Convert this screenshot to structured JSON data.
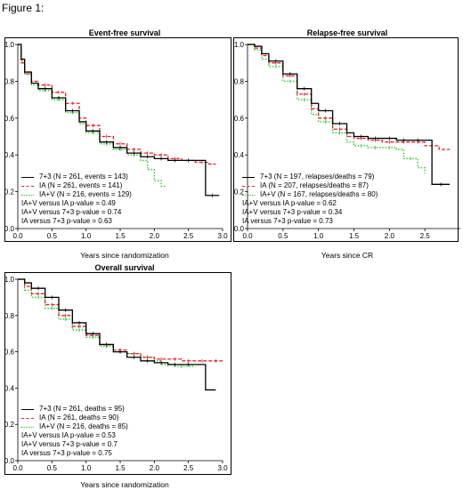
{
  "figure_title": "Figure 1:",
  "colors": {
    "series_7_3": "#000000",
    "series_IA": "#e8242b",
    "series_IAV": "#2cc82c"
  },
  "panels": [
    {
      "title": "Event-free survival",
      "xlabel": "Years since randomization",
      "legend": [
        "7+3 (N = 261, events = 143)",
        "IA (N = 261, events = 141)",
        "IA+V (N = 216, events = 129)"
      ],
      "stats": [
        "IA+V versus IA p-value = 0.49",
        "IA+V versus 7+3 p-value = 0.74",
        "IA versus 7+3 p-value = 0.63"
      ]
    },
    {
      "title": "Relapse-free survival",
      "xlabel": "Years since CR",
      "legend": [
        "7+3 (N = 197, relapses/deaths = 79)",
        "IA (N = 207, relapses/deaths = 87)",
        "IA+V (N = 167, relapses/deaths = 80)"
      ],
      "stats": [
        "IA+V versus IA p-value = 0.62",
        "IA+V versus 7+3 p-value = 0.34",
        "IA versus 7+3 p-value = 0.73"
      ]
    },
    {
      "title": "Overall survival",
      "xlabel": "Years since randomization",
      "legend": [
        "7+3 (N = 261, deaths = 95)",
        "IA (N = 261, deaths = 90)",
        "IA+V (N = 216, deaths = 85)"
      ],
      "stats": [
        "IA+V versus IA p-value = 0.53",
        "IA+V versus 7+3 p-value = 0.7",
        "IA versus 7+3 p-value = 0.75"
      ]
    }
  ],
  "chart_data": [
    {
      "type": "line",
      "title": "Event-free survival",
      "xlabel": "Years since randomization",
      "xlim": [
        0,
        3.0
      ],
      "ylim": [
        0.0,
        1.0
      ],
      "xticks": [
        "0.0",
        "0.5",
        "1.0",
        "1.5",
        "2.0",
        "2.5",
        "3.0"
      ],
      "yticks": [
        "0.0",
        "0.2",
        "0.4",
        "0.6",
        "0.8",
        "1.0"
      ],
      "series": [
        {
          "name": "7+3",
          "style": "solid",
          "x": [
            0,
            0.05,
            0.1,
            0.2,
            0.3,
            0.5,
            0.7,
            0.9,
            1.0,
            1.2,
            1.4,
            1.6,
            1.8,
            2.0,
            2.2,
            2.4,
            2.6,
            2.75,
            2.75,
            2.95
          ],
          "y": [
            1.0,
            0.92,
            0.85,
            0.79,
            0.76,
            0.71,
            0.64,
            0.58,
            0.53,
            0.47,
            0.44,
            0.41,
            0.39,
            0.38,
            0.37,
            0.37,
            0.37,
            0.37,
            0.18,
            0.18
          ]
        },
        {
          "name": "IA",
          "style": "dashed",
          "x": [
            0,
            0.05,
            0.1,
            0.2,
            0.3,
            0.5,
            0.7,
            0.9,
            1.0,
            1.2,
            1.4,
            1.6,
            1.8,
            2.0,
            2.2,
            2.4,
            2.6,
            2.8,
            2.9
          ],
          "y": [
            1.0,
            0.9,
            0.84,
            0.8,
            0.78,
            0.74,
            0.68,
            0.6,
            0.56,
            0.5,
            0.46,
            0.43,
            0.41,
            0.4,
            0.38,
            0.37,
            0.36,
            0.35,
            0.35
          ]
        },
        {
          "name": "IA+V",
          "style": "dotted",
          "x": [
            0,
            0.05,
            0.1,
            0.2,
            0.3,
            0.5,
            0.7,
            0.9,
            1.0,
            1.2,
            1.4,
            1.6,
            1.8,
            1.9,
            2.0,
            2.1,
            2.15
          ],
          "y": [
            1.0,
            0.91,
            0.84,
            0.78,
            0.75,
            0.7,
            0.63,
            0.57,
            0.52,
            0.46,
            0.43,
            0.4,
            0.37,
            0.32,
            0.26,
            0.23,
            0.22
          ]
        }
      ]
    },
    {
      "type": "line",
      "title": "Relapse-free survival",
      "xlabel": "Years since CR",
      "xlim": [
        0,
        3.0
      ],
      "ylim": [
        0.0,
        1.0
      ],
      "xticks": [
        "0.0",
        "0.5",
        "1.0",
        "1.5",
        "2.0",
        "2.5"
      ],
      "yticks": [
        "0.0",
        "0.2",
        "0.4",
        "0.6",
        "0.8",
        "1.0"
      ],
      "series": [
        {
          "name": "7+3",
          "style": "solid",
          "x": [
            0,
            0.1,
            0.2,
            0.3,
            0.5,
            0.7,
            0.9,
            1.0,
            1.2,
            1.4,
            1.5,
            1.7,
            1.9,
            2.1,
            2.3,
            2.5,
            2.6,
            2.6,
            2.85
          ],
          "y": [
            1.0,
            0.99,
            0.95,
            0.91,
            0.84,
            0.76,
            0.68,
            0.64,
            0.57,
            0.52,
            0.5,
            0.49,
            0.49,
            0.48,
            0.48,
            0.48,
            0.48,
            0.24,
            0.24
          ]
        },
        {
          "name": "IA",
          "style": "dashed",
          "x": [
            0,
            0.1,
            0.2,
            0.3,
            0.5,
            0.7,
            0.9,
            1.0,
            1.2,
            1.4,
            1.5,
            1.7,
            1.9,
            2.1,
            2.3,
            2.5,
            2.7,
            2.85
          ],
          "y": [
            1.0,
            0.98,
            0.94,
            0.9,
            0.83,
            0.73,
            0.65,
            0.6,
            0.54,
            0.5,
            0.49,
            0.48,
            0.47,
            0.47,
            0.47,
            0.45,
            0.43,
            0.43
          ]
        },
        {
          "name": "IA+V",
          "style": "dotted",
          "x": [
            0,
            0.1,
            0.2,
            0.3,
            0.5,
            0.7,
            0.9,
            1.0,
            1.2,
            1.4,
            1.5,
            1.7,
            1.9,
            2.1,
            2.2,
            2.4,
            2.5
          ],
          "y": [
            1.0,
            0.97,
            0.92,
            0.88,
            0.8,
            0.7,
            0.62,
            0.58,
            0.52,
            0.47,
            0.45,
            0.44,
            0.44,
            0.43,
            0.38,
            0.33,
            0.3
          ]
        }
      ]
    },
    {
      "type": "line",
      "title": "Overall survival",
      "xlabel": "Years since randomization",
      "xlim": [
        0,
        3.0
      ],
      "ylim": [
        0.0,
        1.0
      ],
      "xticks": [
        "0.0",
        "0.5",
        "1.0",
        "1.5",
        "2.0",
        "2.5",
        "3.0"
      ],
      "yticks": [
        "0.0",
        "0.2",
        "0.4",
        "0.6",
        "0.8",
        "1.0"
      ],
      "series": [
        {
          "name": "7+3",
          "style": "solid",
          "x": [
            0,
            0.1,
            0.2,
            0.4,
            0.6,
            0.8,
            1.0,
            1.2,
            1.4,
            1.6,
            1.8,
            2.0,
            2.2,
            2.4,
            2.6,
            2.75,
            2.75,
            2.9
          ],
          "y": [
            1.0,
            0.98,
            0.95,
            0.9,
            0.83,
            0.76,
            0.7,
            0.64,
            0.6,
            0.57,
            0.55,
            0.54,
            0.53,
            0.53,
            0.53,
            0.52,
            0.39,
            0.39
          ]
        },
        {
          "name": "IA",
          "style": "dashed",
          "x": [
            0,
            0.1,
            0.2,
            0.4,
            0.6,
            0.8,
            1.0,
            1.2,
            1.4,
            1.6,
            1.8,
            2.0,
            2.2,
            2.4,
            2.6,
            2.8,
            3.0
          ],
          "y": [
            1.0,
            0.96,
            0.92,
            0.86,
            0.8,
            0.74,
            0.69,
            0.64,
            0.61,
            0.59,
            0.57,
            0.56,
            0.56,
            0.55,
            0.55,
            0.55,
            0.55
          ]
        },
        {
          "name": "IA+V",
          "style": "dotted",
          "x": [
            0,
            0.1,
            0.2,
            0.4,
            0.6,
            0.8,
            1.0,
            1.2,
            1.4,
            1.6,
            1.8,
            2.0,
            2.1,
            2.3,
            2.5,
            2.6
          ],
          "y": [
            1.0,
            0.94,
            0.9,
            0.84,
            0.78,
            0.72,
            0.68,
            0.63,
            0.6,
            0.59,
            0.57,
            0.55,
            0.53,
            0.52,
            0.52,
            0.52
          ]
        }
      ]
    }
  ]
}
